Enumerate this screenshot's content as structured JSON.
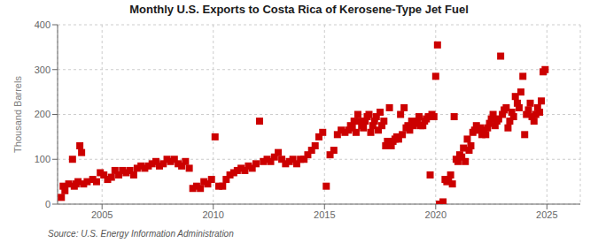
{
  "chart_data": {
    "type": "scatter",
    "title": "Monthly U.S. Exports to Costa Rica of Kerosene-Type Jet Fuel",
    "ylabel": "Thousand Barrels",
    "annotations": [
      "Source: U.S. Energy Information Administration"
    ],
    "color": "#cc0000",
    "marker": "square",
    "grid": true,
    "xlim": [
      2003.0,
      2026.5
    ],
    "xticks": [
      2005,
      2010,
      2015,
      2020,
      2025
    ],
    "ylim": [
      0,
      400
    ],
    "yticks": [
      0,
      100,
      200,
      300,
      400
    ],
    "x": [
      2003.17,
      2003.25,
      2003.33,
      2003.5,
      2003.67,
      2003.75,
      2003.83,
      2003.92,
      2004.0,
      2004.08,
      2004.17,
      2004.33,
      2004.58,
      2004.75,
      2004.92,
      2005.08,
      2005.25,
      2005.42,
      2005.58,
      2005.75,
      2005.92,
      2006.08,
      2006.25,
      2006.42,
      2006.58,
      2006.75,
      2006.92,
      2007.08,
      2007.25,
      2007.42,
      2007.58,
      2007.75,
      2007.92,
      2008.08,
      2008.25,
      2008.42,
      2008.58,
      2008.75,
      2008.92,
      2009.08,
      2009.25,
      2009.42,
      2009.58,
      2009.75,
      2009.92,
      2010.08,
      2010.25,
      2010.42,
      2010.58,
      2010.75,
      2010.92,
      2011.08,
      2011.25,
      2011.42,
      2011.58,
      2011.75,
      2011.92,
      2012.08,
      2012.25,
      2012.42,
      2012.58,
      2012.75,
      2012.92,
      2013.08,
      2013.25,
      2013.42,
      2013.58,
      2013.75,
      2013.92,
      2014.08,
      2014.25,
      2014.42,
      2014.58,
      2014.75,
      2014.92,
      2015.08,
      2015.25,
      2015.42,
      2015.58,
      2015.75,
      2015.92,
      2016.08,
      2016.17,
      2016.25,
      2016.33,
      2016.42,
      2016.5,
      2016.58,
      2016.67,
      2016.75,
      2016.83,
      2016.92,
      2017.0,
      2017.08,
      2017.17,
      2017.25,
      2017.33,
      2017.42,
      2017.5,
      2017.58,
      2017.67,
      2017.75,
      2017.83,
      2017.92,
      2018.0,
      2018.08,
      2018.17,
      2018.25,
      2018.33,
      2018.42,
      2018.5,
      2018.58,
      2018.67,
      2018.75,
      2018.83,
      2018.92,
      2019.0,
      2019.08,
      2019.17,
      2019.25,
      2019.33,
      2019.42,
      2019.5,
      2019.58,
      2019.67,
      2019.75,
      2019.83,
      2019.92,
      2020.0,
      2020.08,
      2020.17,
      2020.25,
      2020.33,
      2020.42,
      2020.5,
      2020.58,
      2020.67,
      2020.75,
      2020.83,
      2020.92,
      2021.0,
      2021.08,
      2021.17,
      2021.25,
      2021.33,
      2021.42,
      2021.5,
      2021.58,
      2021.67,
      2021.75,
      2021.83,
      2021.92,
      2022.0,
      2022.08,
      2022.17,
      2022.25,
      2022.33,
      2022.42,
      2022.5,
      2022.58,
      2022.67,
      2022.75,
      2022.83,
      2022.92,
      2023.0,
      2023.08,
      2023.17,
      2023.25,
      2023.33,
      2023.42,
      2023.5,
      2023.58,
      2023.67,
      2023.75,
      2023.83,
      2023.92,
      2024.0,
      2024.08,
      2024.17,
      2024.25,
      2024.33,
      2024.42,
      2024.5,
      2024.58,
      2024.67,
      2024.75,
      2024.83,
      2024.92
    ],
    "values": [
      15,
      40,
      30,
      45,
      100,
      40,
      45,
      50,
      130,
      115,
      45,
      50,
      55,
      50,
      70,
      65,
      55,
      60,
      75,
      65,
      75,
      70,
      75,
      65,
      80,
      85,
      80,
      85,
      90,
      95,
      85,
      90,
      100,
      95,
      100,
      90,
      85,
      95,
      80,
      35,
      40,
      35,
      50,
      45,
      55,
      150,
      40,
      40,
      55,
      65,
      70,
      75,
      80,
      75,
      85,
      80,
      90,
      185,
      95,
      100,
      95,
      105,
      115,
      100,
      90,
      95,
      100,
      90,
      100,
      100,
      110,
      120,
      130,
      150,
      160,
      40,
      110,
      120,
      155,
      165,
      160,
      165,
      175,
      170,
      185,
      160,
      200,
      185,
      175,
      170,
      185,
      195,
      200,
      160,
      175,
      185,
      195,
      165,
      205,
      175,
      185,
      130,
      140,
      215,
      130,
      140,
      145,
      150,
      145,
      200,
      155,
      215,
      170,
      175,
      165,
      185,
      175,
      180,
      185,
      195,
      175,
      175,
      185,
      190,
      195,
      65,
      200,
      195,
      285,
      355,
      0,
      0,
      5,
      55,
      50,
      55,
      65,
      45,
      195,
      100,
      95,
      110,
      105,
      125,
      95,
      145,
      120,
      130,
      160,
      165,
      175,
      165,
      170,
      155,
      165,
      155,
      170,
      180,
      190,
      200,
      175,
      185,
      190,
      330,
      200,
      210,
      215,
      170,
      185,
      205,
      195,
      240,
      225,
      215,
      250,
      285,
      155,
      200,
      210,
      225,
      195,
      185,
      200,
      215,
      205,
      230,
      295,
      300
    ]
  }
}
